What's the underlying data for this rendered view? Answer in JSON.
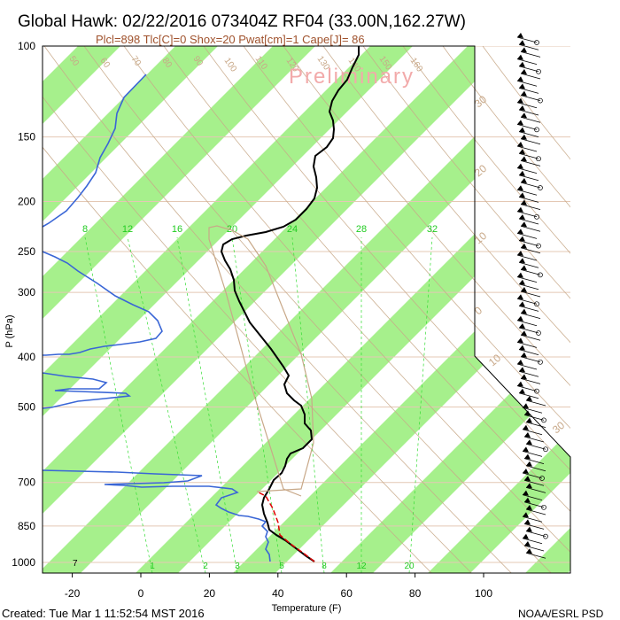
{
  "header": {
    "title": "Global Hawk: 02/22/2016 073404Z RF04 (33.00N,162.27W)",
    "params": "Plcl=898 Tlc[C]=0 Shox=20 Pwat[cm]=1 Cape[J]= 86",
    "watermark": "Preliminary"
  },
  "footer": {
    "created": "Created: Tue Mar  1 11:52:54 MST 2016",
    "credit": "NOAA/ESRL PSD"
  },
  "colors": {
    "band": "#a6f08c",
    "temperature": "#000000",
    "dewpoint": "#3a66d6",
    "parcel": "#e00000",
    "mixing_ratio": "#33dd33",
    "adiabat": "#c8a888"
  },
  "chart_data": {
    "type": "line",
    "title": "Global Hawk: 02/22/2016 073404Z RF04 (33.00N,162.27W)",
    "subtitle": "Plcl=898 Tlc[C]=0 Shox=20 Pwat[cm]=1 Cape[J]= 86",
    "xlabel": "Temperature (F)",
    "ylabel": "P (hPa)",
    "x_range": [
      -30,
      110
    ],
    "y_range": [
      1000,
      100
    ],
    "y_scale": "log",
    "x_ticks": [
      "-20",
      "0",
      "20",
      "40",
      "60",
      "80",
      "100"
    ],
    "y_ticks": [
      "100",
      "150",
      "200",
      "250",
      "300",
      "400",
      "500",
      "700",
      "850",
      "1000"
    ],
    "mixing_ratio_labels": [
      "8",
      "12",
      "16",
      "20",
      "24",
      "28",
      "32"
    ],
    "mixing_ratio_bottom_labels": [
      "1",
      "2",
      "3",
      "5",
      "8",
      "12",
      "20"
    ],
    "corner_label": "7",
    "adiabat_labels": [
      "50",
      "60",
      "70",
      "80",
      "90",
      "100",
      "110",
      "120",
      "130",
      "140",
      "150",
      "160"
    ],
    "isotherm_labels": [
      "30",
      "20",
      "10",
      "0",
      "10",
      "30"
    ],
    "series": []
  }
}
